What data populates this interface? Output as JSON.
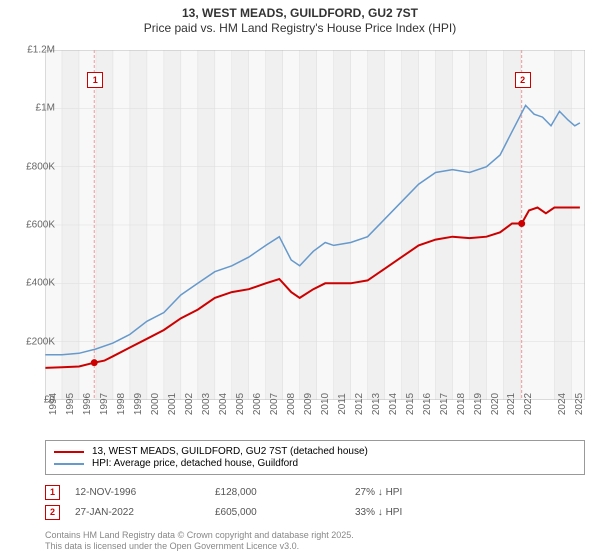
{
  "title_line1": "13, WEST MEADS, GUILDFORD, GU2 7ST",
  "title_line2": "Price paid vs. HM Land Registry's House Price Index (HPI)",
  "chart": {
    "type": "line",
    "background_color": "#ffffff",
    "plot_bg_color": "#f8f8f8",
    "grid_color": "#dddddd",
    "stripe_color": "#f0f0f0",
    "border_color": "#bbbbbb",
    "xlim": [
      1994,
      2025.8
    ],
    "ylim": [
      0,
      1200000
    ],
    "ytick_step": 200000,
    "ytick_labels": [
      "£0",
      "£200K",
      "£400K",
      "£600K",
      "£800K",
      "£1M",
      "£1.2M"
    ],
    "xtick_years": [
      1994,
      1995,
      1996,
      1997,
      1998,
      1999,
      2000,
      2001,
      2002,
      2003,
      2004,
      2005,
      2006,
      2007,
      2008,
      2009,
      2010,
      2011,
      2012,
      2013,
      2014,
      2015,
      2016,
      2017,
      2018,
      2019,
      2020,
      2021,
      2022,
      2024,
      2025
    ],
    "series": [
      {
        "name": "price_paid",
        "color": "#cc0000",
        "width": 2,
        "legend": "13, WEST MEADS, GUILDFORD, GU2 7ST (detached house)",
        "data": [
          [
            1994,
            110000
          ],
          [
            1995,
            112000
          ],
          [
            1996,
            115000
          ],
          [
            1996.9,
            128000
          ],
          [
            1997.5,
            135000
          ],
          [
            1998,
            150000
          ],
          [
            1999,
            180000
          ],
          [
            2000,
            210000
          ],
          [
            2001,
            240000
          ],
          [
            2002,
            280000
          ],
          [
            2003,
            310000
          ],
          [
            2004,
            350000
          ],
          [
            2005,
            370000
          ],
          [
            2006,
            380000
          ],
          [
            2007,
            400000
          ],
          [
            2007.8,
            415000
          ],
          [
            2008.5,
            370000
          ],
          [
            2009,
            350000
          ],
          [
            2009.8,
            380000
          ],
          [
            2010.5,
            400000
          ],
          [
            2011,
            400000
          ],
          [
            2012,
            400000
          ],
          [
            2013,
            410000
          ],
          [
            2014,
            450000
          ],
          [
            2015,
            490000
          ],
          [
            2016,
            530000
          ],
          [
            2017,
            550000
          ],
          [
            2018,
            560000
          ],
          [
            2019,
            555000
          ],
          [
            2020,
            560000
          ],
          [
            2020.8,
            575000
          ],
          [
            2021.5,
            605000
          ],
          [
            2022.07,
            605000
          ],
          [
            2022.5,
            650000
          ],
          [
            2023,
            660000
          ],
          [
            2023.5,
            640000
          ],
          [
            2024,
            660000
          ],
          [
            2024.5,
            660000
          ],
          [
            2025,
            660000
          ],
          [
            2025.5,
            660000
          ]
        ]
      },
      {
        "name": "hpi",
        "color": "#6699cc",
        "width": 1.5,
        "legend": "HPI: Average price, detached house, Guildford",
        "data": [
          [
            1994,
            155000
          ],
          [
            1995,
            155000
          ],
          [
            1996,
            160000
          ],
          [
            1997,
            175000
          ],
          [
            1998,
            195000
          ],
          [
            1999,
            225000
          ],
          [
            2000,
            270000
          ],
          [
            2001,
            300000
          ],
          [
            2002,
            360000
          ],
          [
            2003,
            400000
          ],
          [
            2004,
            440000
          ],
          [
            2005,
            460000
          ],
          [
            2006,
            490000
          ],
          [
            2007,
            530000
          ],
          [
            2007.8,
            560000
          ],
          [
            2008.5,
            480000
          ],
          [
            2009,
            460000
          ],
          [
            2009.8,
            510000
          ],
          [
            2010.5,
            540000
          ],
          [
            2011,
            530000
          ],
          [
            2012,
            540000
          ],
          [
            2013,
            560000
          ],
          [
            2014,
            620000
          ],
          [
            2015,
            680000
          ],
          [
            2016,
            740000
          ],
          [
            2017,
            780000
          ],
          [
            2018,
            790000
          ],
          [
            2019,
            780000
          ],
          [
            2020,
            800000
          ],
          [
            2020.8,
            840000
          ],
          [
            2021.5,
            920000
          ],
          [
            2022.3,
            1010000
          ],
          [
            2022.8,
            980000
          ],
          [
            2023.3,
            970000
          ],
          [
            2023.8,
            940000
          ],
          [
            2024.3,
            990000
          ],
          [
            2024.8,
            960000
          ],
          [
            2025.2,
            940000
          ],
          [
            2025.5,
            950000
          ]
        ]
      }
    ],
    "markers": [
      {
        "id": "1",
        "x": 1996.9,
        "y": 128000,
        "line_color": "#ee9999"
      },
      {
        "id": "2",
        "x": 2022.07,
        "y": 605000,
        "line_color": "#ee9999"
      }
    ]
  },
  "legend": {
    "border_color": "#999999",
    "items": [
      {
        "color": "#cc0000",
        "label": "13, WEST MEADS, GUILDFORD, GU2 7ST (detached house)"
      },
      {
        "color": "#6699cc",
        "label": "HPI: Average price, detached house, Guildford"
      }
    ]
  },
  "sales": [
    {
      "id": "1",
      "date": "12-NOV-1996",
      "price": "£128,000",
      "hpi_delta": "27% ↓ HPI"
    },
    {
      "id": "2",
      "date": "27-JAN-2022",
      "price": "£605,000",
      "hpi_delta": "33% ↓ HPI"
    }
  ],
  "copyright_line1": "Contains HM Land Registry data © Crown copyright and database right 2025.",
  "copyright_line2": "This data is licensed under the Open Government Licence v3.0."
}
